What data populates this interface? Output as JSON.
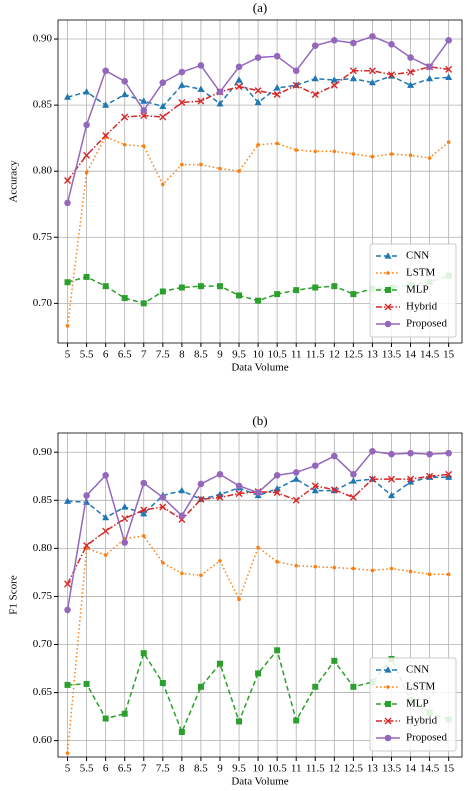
{
  "chart_data": [
    {
      "type": "line",
      "title": "(a)",
      "xlabel": "Data Volume",
      "ylabel": "Accuracy",
      "x": [
        5,
        5.5,
        6,
        6.5,
        7,
        7.5,
        8,
        8.5,
        9,
        9.5,
        10,
        10.5,
        11,
        11.5,
        12,
        12.5,
        13,
        13.5,
        14,
        14.5,
        15
      ],
      "xlim": [
        4.75,
        15.35
      ],
      "xticks": [
        5,
        5.5,
        6,
        6.5,
        7,
        7.5,
        8,
        8.5,
        9,
        9.5,
        10,
        10.5,
        11,
        11.5,
        12,
        12.5,
        13,
        13.5,
        14,
        14.5,
        15
      ],
      "ylim": [
        0.67,
        0.9144
      ],
      "yticks": [
        {
          "value": 0.7,
          "label": "0.70"
        },
        0.75,
        {
          "value": 0.8,
          "label": "0.80"
        },
        0.85,
        {
          "value": 0.9,
          "label": "0.90"
        }
      ],
      "grid": true,
      "legend": "lower right",
      "series": [
        {
          "name": "CNN",
          "color": "#1f77b4",
          "linestyle": "--",
          "marker": "^",
          "values": [
            0.856,
            0.86,
            0.85,
            0.858,
            0.853,
            0.849,
            0.865,
            0.862,
            0.851,
            0.869,
            0.852,
            0.863,
            0.865,
            0.87,
            0.869,
            0.87,
            0.867,
            0.872,
            0.865,
            0.87,
            0.871
          ]
        },
        {
          "name": "LSTM",
          "color": "#ff7f0e",
          "linestyle": ":",
          "marker": ".",
          "values": [
            0.683,
            0.799,
            0.826,
            0.82,
            0.819,
            0.79,
            0.805,
            0.805,
            0.802,
            0.8,
            0.82,
            0.821,
            0.816,
            0.815,
            0.815,
            0.813,
            0.811,
            0.813,
            0.812,
            0.81,
            0.822
          ]
        },
        {
          "name": "MLP",
          "color": "#2ca02c",
          "linestyle": "--",
          "marker": "s",
          "values": [
            0.716,
            0.72,
            0.713,
            0.704,
            0.7,
            0.709,
            0.712,
            0.713,
            0.713,
            0.706,
            0.702,
            0.707,
            0.71,
            0.712,
            0.713,
            0.707,
            0.711,
            0.712,
            0.714,
            0.716,
            0.721
          ]
        },
        {
          "name": "Hybrid",
          "color": "#d62728",
          "linestyle": "-.",
          "marker": "x",
          "values": [
            0.793,
            0.812,
            0.827,
            0.841,
            0.842,
            0.841,
            0.852,
            0.853,
            0.86,
            0.864,
            0.861,
            0.858,
            0.865,
            0.858,
            0.865,
            0.876,
            0.876,
            0.873,
            0.875,
            0.879,
            0.877
          ]
        },
        {
          "name": "Proposed",
          "color": "#9467bd",
          "linestyle": "-",
          "marker": "o",
          "values": [
            0.776,
            0.835,
            0.876,
            0.868,
            0.846,
            0.867,
            0.875,
            0.88,
            0.86,
            0.879,
            0.886,
            0.887,
            0.876,
            0.895,
            0.899,
            0.897,
            0.902,
            0.896,
            0.886,
            0.879,
            0.899
          ]
        }
      ]
    },
    {
      "type": "line",
      "title": "(b)",
      "xlabel": "Data Volume",
      "ylabel": "F1 Score",
      "x": [
        5,
        5.5,
        6,
        6.5,
        7,
        7.5,
        8,
        8.5,
        9,
        9.5,
        10,
        10.5,
        11,
        11.5,
        12,
        12.5,
        13,
        13.5,
        14,
        14.5,
        15
      ],
      "xlim": [
        4.75,
        15.35
      ],
      "xticks": [
        5,
        5.5,
        6,
        6.5,
        7,
        7.5,
        8,
        8.5,
        9,
        9.5,
        10,
        10.5,
        11,
        11.5,
        12,
        12.5,
        13,
        13.5,
        14,
        14.5,
        15
      ],
      "ylim": [
        0.583,
        0.92
      ],
      "yticks": [
        {
          "value": 0.6,
          "label": "0.60"
        },
        0.65,
        {
          "value": 0.7,
          "label": "0.70"
        },
        0.75,
        {
          "value": 0.8,
          "label": "0.80"
        },
        0.85,
        {
          "value": 0.9,
          "label": "0.90"
        }
      ],
      "grid": true,
      "legend": "lower right",
      "series": [
        {
          "name": "CNN",
          "color": "#1f77b4",
          "linestyle": "--",
          "marker": "^",
          "values": [
            0.849,
            0.848,
            0.832,
            0.843,
            0.836,
            0.855,
            0.86,
            0.851,
            0.856,
            0.863,
            0.855,
            0.862,
            0.872,
            0.86,
            0.86,
            0.87,
            0.872,
            0.855,
            0.869,
            0.874,
            0.874
          ]
        },
        {
          "name": "LSTM",
          "color": "#ff7f0e",
          "linestyle": ":",
          "marker": ".",
          "values": [
            0.587,
            0.8,
            0.793,
            0.81,
            0.813,
            0.785,
            0.774,
            0.772,
            0.787,
            0.747,
            0.801,
            0.786,
            0.782,
            0.781,
            0.78,
            0.779,
            0.777,
            0.779,
            0.776,
            0.773,
            0.773
          ]
        },
        {
          "name": "MLP",
          "color": "#2ca02c",
          "linestyle": "--",
          "marker": "s",
          "values": [
            0.658,
            0.659,
            0.623,
            0.628,
            0.691,
            0.66,
            0.609,
            0.656,
            0.68,
            0.62,
            0.67,
            0.694,
            0.621,
            0.656,
            0.683,
            0.656,
            0.661,
            0.685,
            0.642,
            0.629,
            0.622
          ]
        },
        {
          "name": "Hybrid",
          "color": "#d62728",
          "linestyle": "-.",
          "marker": "x",
          "values": [
            0.763,
            0.803,
            0.818,
            0.831,
            0.84,
            0.843,
            0.83,
            0.851,
            0.853,
            0.857,
            0.859,
            0.858,
            0.85,
            0.865,
            0.861,
            0.853,
            0.872,
            0.872,
            0.872,
            0.875,
            0.877
          ]
        },
        {
          "name": "Proposed",
          "color": "#9467bd",
          "linestyle": "-",
          "marker": "o",
          "values": [
            0.736,
            0.855,
            0.876,
            0.806,
            0.868,
            0.853,
            0.834,
            0.867,
            0.877,
            0.865,
            0.858,
            0.876,
            0.879,
            0.886,
            0.896,
            0.877,
            0.901,
            0.898,
            0.899,
            0.898,
            0.899
          ]
        }
      ]
    }
  ]
}
